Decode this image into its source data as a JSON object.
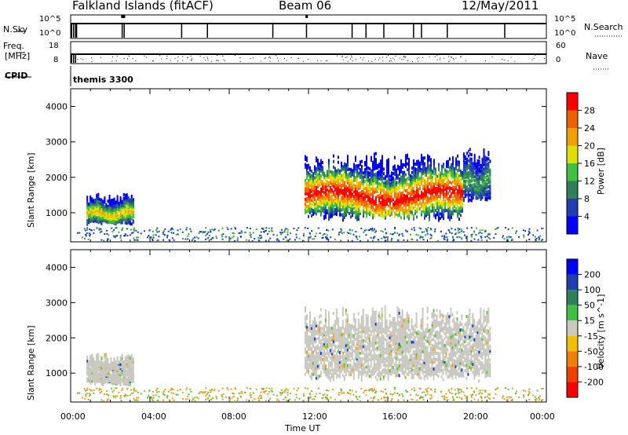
{
  "header": {
    "station": "Falkland Islands (fitACF)",
    "beam": "Beam 06",
    "date": "12/May/2011"
  },
  "strip_labels": {
    "nsky": "N.Sky",
    "nsky_top": "10^5",
    "nsky_bot": "10^0",
    "nsearch": "N.Search",
    "nsearch_top": "10^5",
    "nsearch_bot": "10^0",
    "freq_label_1": "Freq.",
    "freq_label_2": "[MHz]",
    "freq_top": "18",
    "freq_bot": "8",
    "nave": "Nave",
    "nave_top": "60",
    "nave_bot": "0",
    "cpid": "CPID",
    "cpid_name": "themis 3300"
  },
  "colors": {
    "scatter_gray": "#c8c8c0",
    "ground_orange": "#e8a020",
    "ground_green": "#60c030",
    "power_blue": "#1040c8"
  },
  "chart_data": [
    {
      "type": "heatmap",
      "title": "",
      "xlabel": "Time UT",
      "ylabel": "Slant Range [km]",
      "x_ticks": [
        "00:00",
        "04:00",
        "08:00",
        "12:00",
        "16:00",
        "20:00",
        "00:00"
      ],
      "x_range_hours": [
        0,
        24
      ],
      "y_ticks": [
        1000,
        2000,
        3000,
        4000
      ],
      "ylim": [
        180,
        4500
      ],
      "colorbar": {
        "label": "Power [dB]",
        "ticks": [
          4,
          8,
          12,
          16,
          20,
          24,
          28
        ],
        "range": [
          0,
          30
        ],
        "colors": [
          "#0000ff",
          "#1f3fb0",
          "#2f7f5a",
          "#40c040",
          "#e0e000",
          "#f0a000",
          "#f06000",
          "#ff0000"
        ]
      },
      "regions": [
        {
          "t_start": 0.8,
          "t_end": 3.2,
          "r_min": 700,
          "r_max": 1450,
          "peak_db": 18
        },
        {
          "t_start": 11.8,
          "t_end": 19.8,
          "r_min": 900,
          "r_max": 2500,
          "peak_db": 28
        },
        {
          "t_start": 19.8,
          "t_end": 21.2,
          "r_min": 1400,
          "r_max": 2700,
          "peak_db": 10
        }
      ]
    },
    {
      "type": "heatmap",
      "title": "",
      "xlabel": "Time UT",
      "ylabel": "Slant Range [km]",
      "x_ticks": [
        "00:00",
        "04:00",
        "08:00",
        "12:00",
        "16:00",
        "20:00",
        "00:00"
      ],
      "x_range_hours": [
        0,
        24
      ],
      "y_ticks": [
        1000,
        2000,
        3000,
        4000
      ],
      "ylim": [
        180,
        4500
      ],
      "colorbar": {
        "label": "Velocity [m s^-1]",
        "tick_labels": [
          "200",
          "100",
          "50",
          "15",
          "-15",
          "-50",
          "-100",
          "-200"
        ],
        "colors": [
          "#0000ff",
          "#1f3fb0",
          "#2f7f5a",
          "#40c040",
          "#c8c8c0",
          "#f0c000",
          "#f08000",
          "#f04000",
          "#ff0000"
        ]
      },
      "regions": [
        {
          "t_start": 0.8,
          "t_end": 3.2,
          "r_min": 700,
          "r_max": 1450,
          "velocity": "low"
        },
        {
          "t_start": 11.8,
          "t_end": 21.2,
          "r_min": 900,
          "r_max": 2700,
          "velocity": "low"
        }
      ]
    }
  ],
  "footer": {
    "x_ticks": [
      "00:00",
      "04:00",
      "08:00",
      "12:00",
      "16:00",
      "20:00",
      "00:00"
    ],
    "xlabel": "Time UT"
  }
}
